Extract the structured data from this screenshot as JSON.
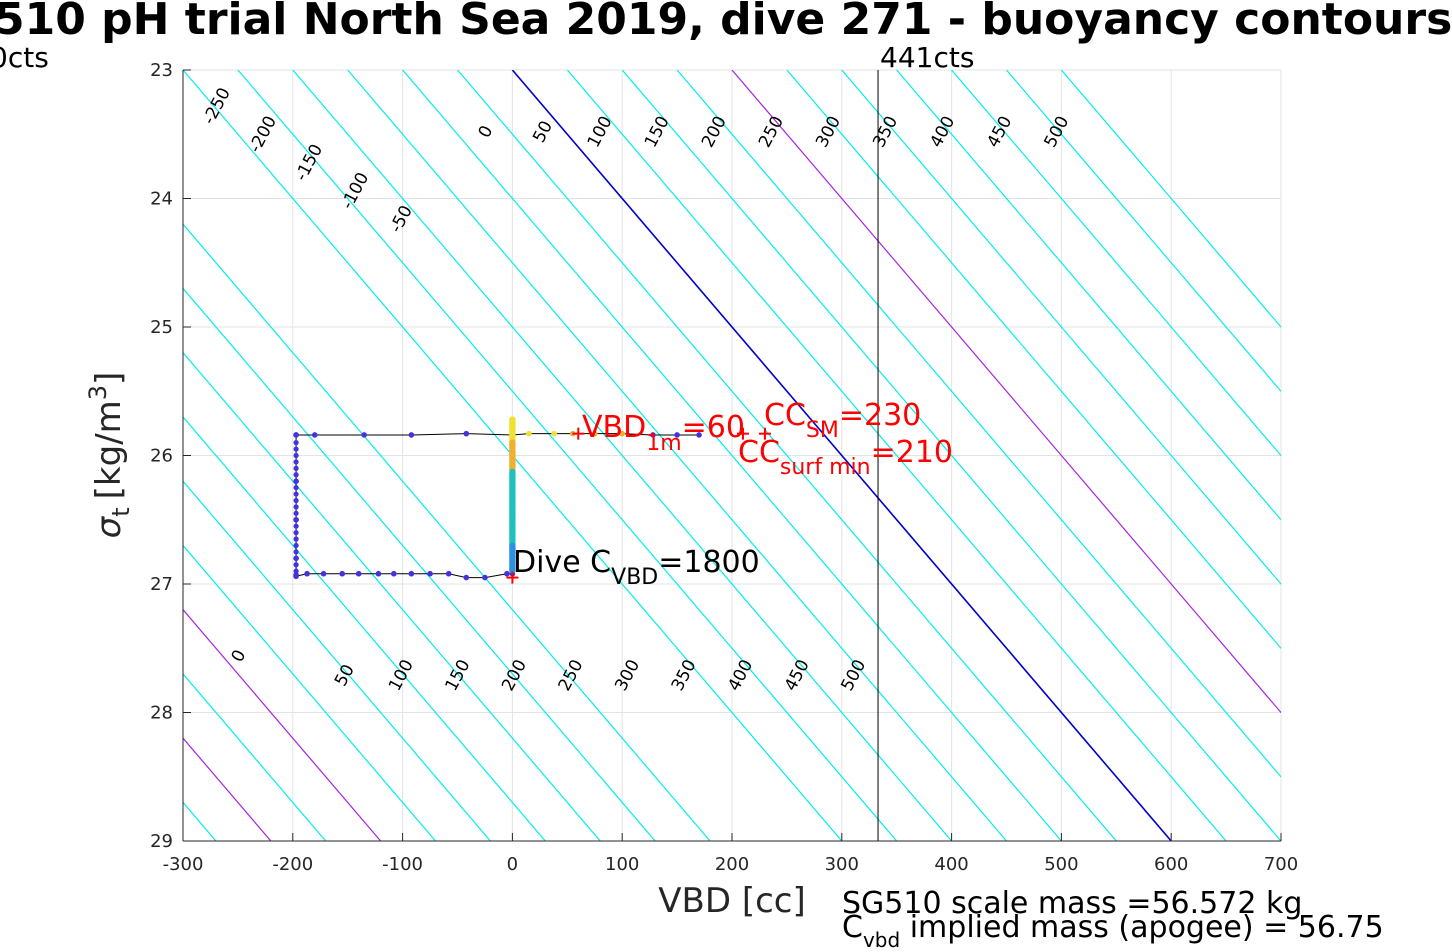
{
  "title": "510 pH trial North Sea 2019, dive 271 - buoyancy contours",
  "chart_data": {
    "type": "scatter",
    "xlabel": "VBD [cc]",
    "ylabel_main": "σ",
    "ylabel_sub": "t",
    "ylabel_unit": "[kg/m",
    "ylabel_sup": "3",
    "ylabel_end": "]",
    "xlim": [
      -300,
      700
    ],
    "ylim": [
      23,
      29
    ],
    "y_reversed": true,
    "grid": true,
    "xticks": [
      -300,
      -200,
      -100,
      0,
      100,
      200,
      300,
      400,
      500,
      600,
      700
    ],
    "yticks": [
      23,
      24,
      25,
      26,
      27,
      28,
      29
    ],
    "contours": {
      "slope_cc_per_sigma": 100,
      "top_values": [
        -250,
        -200,
        -150,
        -100,
        -50,
        0,
        50,
        100,
        150,
        200,
        250,
        300,
        350,
        400,
        450,
        500
      ],
      "bottom_values": [
        0,
        50,
        100,
        150,
        200,
        250,
        300,
        350,
        400,
        450,
        500
      ],
      "top_lines_x_at_23": [
        -300,
        -250,
        -200,
        -150,
        -100,
        -50,
        0,
        50,
        100,
        150,
        200,
        250,
        300,
        350,
        400,
        450,
        500
      ],
      "bottom_lines_x_at_29": [
        -270,
        -220,
        -170,
        -120,
        -70,
        -20,
        30,
        80,
        130,
        180
      ],
      "highlight_top_x": [
        0,
        200
      ],
      "highlight_bottom_x": [
        -220,
        -120
      ],
      "colors": {
        "contour": "#00eeee",
        "zero": "#0000cc",
        "highlight": "#aa22dd"
      }
    },
    "limits": [
      {
        "label": "0cts",
        "x": -300
      },
      {
        "label": "441cts",
        "x": 333
      }
    ],
    "dive_track": {
      "x": [
        -197,
        -197,
        -197,
        -197,
        -197,
        -197,
        -180,
        -135,
        -92,
        -42,
        0,
        0,
        0,
        -5,
        -25,
        -42,
        -58,
        -75,
        -92,
        -108,
        -122,
        -140,
        -155,
        -172,
        -187,
        -197
      ],
      "y": [
        25.84,
        26.2,
        26.5,
        26.8,
        26.93,
        25.84,
        25.84,
        25.84,
        25.84,
        25.83,
        25.84,
        26.3,
        26.92,
        26.92,
        26.95,
        26.95,
        26.92,
        26.92,
        26.92,
        26.92,
        26.92,
        26.92,
        26.92,
        26.92,
        26.92,
        26.94
      ]
    },
    "climb_track": {
      "x": [
        0,
        15,
        38,
        55,
        75,
        100,
        128,
        150,
        170
      ],
      "y": [
        25.84,
        25.83,
        25.83,
        25.83,
        25.83,
        25.83,
        25.84,
        25.84,
        25.84
      ]
    },
    "colors": {
      "dive": "#4433dd",
      "climb": "#f0e030",
      "column_top": "#f0b030",
      "column_mid": "#20c0c0",
      "column_low": "#3090e0",
      "annot": "#ff0000"
    },
    "annotations": {
      "vbd1m_main": "VBD",
      "vbd1m_sub": "1m",
      "vbd1m_value": "=60",
      "ccsm_main": "CC",
      "ccsm_sub": "SM",
      "ccsm_value": "=230",
      "ccsurf_main": "CC",
      "ccsurf_sub": "surf min",
      "ccsurf_value": "=210",
      "dive_main": "Dive C",
      "dive_sub": "VBD",
      "dive_value": "=1800",
      "vbd1m_marker_x": 60,
      "ccsm_marker_x": 230,
      "ccsurf_marker_x": 210,
      "marker_y": 25.83,
      "dive_marker": {
        "x": 0,
        "y": 26.95
      }
    }
  },
  "footer": {
    "scale_mass": "SG510 scale mass =56.572 kg",
    "implied_main": "C",
    "implied_sub": "vbd",
    "implied_text": " implied mass (apogee) = 56.75"
  }
}
